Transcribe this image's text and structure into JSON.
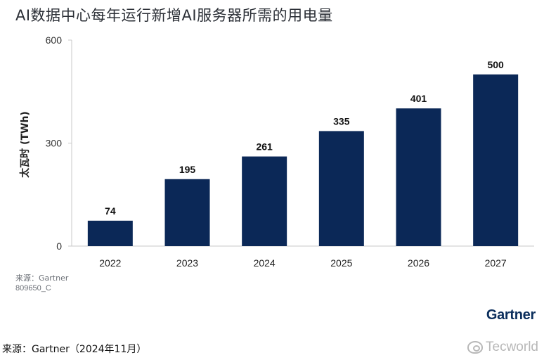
{
  "chart_data": {
    "type": "bar",
    "title": "AI数据中心每年运行新增AI服务器所需的用电量",
    "ylabel": "太瓦时 (TWh)",
    "xlabel": "",
    "categories": [
      "2022",
      "2023",
      "2024",
      "2025",
      "2026",
      "2027"
    ],
    "values": [
      74,
      195,
      261,
      335,
      401,
      500
    ],
    "data_labels": [
      "74",
      "195",
      "261",
      "335",
      "401",
      "500"
    ],
    "ylim": [
      0,
      600
    ],
    "yticks": [
      0,
      300,
      600
    ],
    "ytick_labels": [
      "0",
      "300",
      "600"
    ],
    "grid": false,
    "legend": "none",
    "bar_color": "#0b2857"
  },
  "source_inner": "来源：Gartner",
  "chart_id": "809650_C",
  "brand": "Gartner",
  "footer_source": "来源：Gartner（2024年11月）",
  "watermark_text": "Tecworld",
  "watermark_icon": "weibo-icon"
}
